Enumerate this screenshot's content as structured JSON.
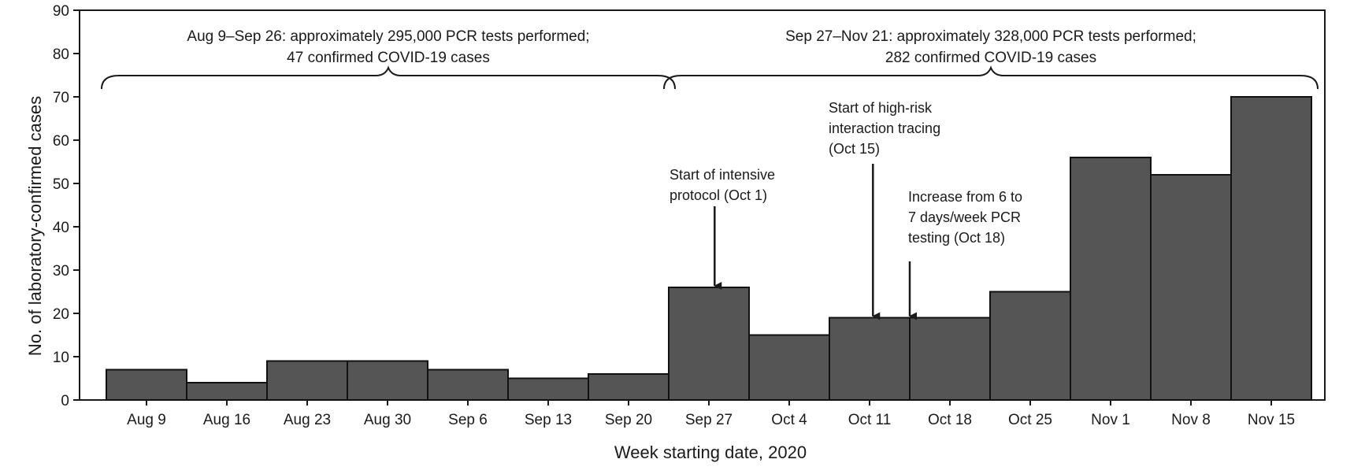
{
  "chart_data": {
    "type": "bar",
    "title": "",
    "xlabel": "Week starting date, 2020",
    "ylabel": "No. of laboratory-confirmed cases",
    "ylim": [
      0,
      90
    ],
    "yticks": [
      0,
      10,
      20,
      30,
      40,
      50,
      60,
      70,
      80,
      90
    ],
    "grid": false,
    "legend": "none",
    "bar_color": "#555555",
    "categories": [
      "Aug 9",
      "Aug 16",
      "Aug 23",
      "Aug 30",
      "Sep 6",
      "Sep 13",
      "Sep 20",
      "Sep 27",
      "Oct 4",
      "Oct 11",
      "Oct 18",
      "Oct 25",
      "Nov 1",
      "Nov 8",
      "Nov 15"
    ],
    "values": [
      7,
      4,
      9,
      9,
      7,
      5,
      6,
      26,
      15,
      19,
      19,
      25,
      56,
      52,
      70
    ],
    "periods": [
      {
        "start": "Aug 9",
        "end": "Sep 20",
        "lines": [
          "Aug 9–Sep 26: approximately 295,000 PCR tests performed;",
          "47 confirmed COVID-19 cases"
        ]
      },
      {
        "start": "Sep 27",
        "end": "Nov 15",
        "lines": [
          "Sep 27–Nov 21: approximately 328,000 PCR tests performed;",
          "282 confirmed COVID-19 cases"
        ]
      }
    ],
    "annotations": [
      {
        "lines": [
          "Start of intensive",
          "protocol (Oct 1)"
        ],
        "date": "Oct 1",
        "week": "Sep 27",
        "day_offset": 4
      },
      {
        "lines": [
          "Start of high-risk",
          "interaction tracing",
          "(Oct 15)"
        ],
        "date": "Oct 15",
        "week": "Oct 11",
        "day_offset": 4
      },
      {
        "lines": [
          "Increase from 6 to",
          "7 days/week PCR",
          "testing  (Oct 18)"
        ],
        "date": "Oct 18",
        "week": "Oct 18",
        "day_offset": 0
      }
    ]
  }
}
